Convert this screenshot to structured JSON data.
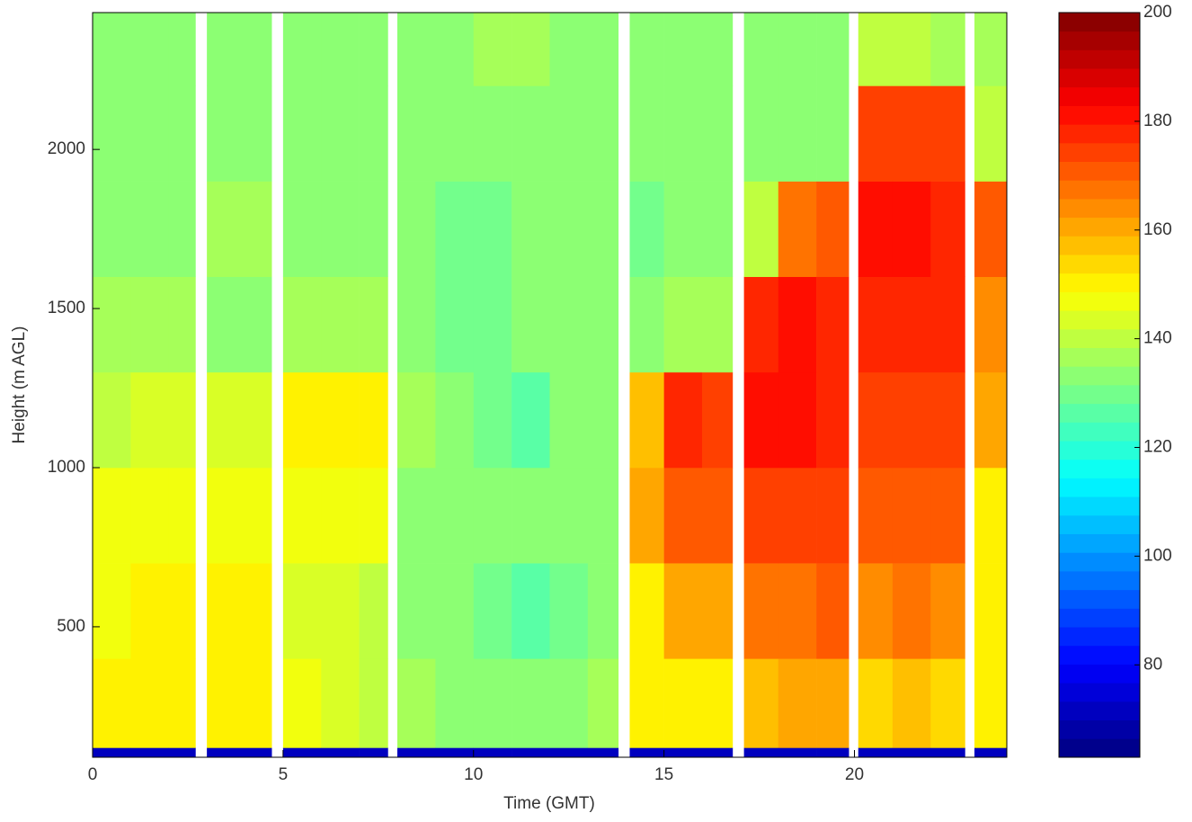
{
  "chart_data": {
    "type": "heatmap",
    "xlabel": "Time (GMT)",
    "ylabel": "Height (m AGL)",
    "xlim": [
      0,
      24
    ],
    "xticks": [
      0,
      5,
      10,
      15,
      20
    ],
    "ylim": [
      90,
      2430
    ],
    "yticks": [
      500,
      1000,
      1500,
      2000
    ],
    "x_edges": [
      0,
      1,
      2,
      2.7,
      3,
      4,
      4.7,
      5,
      6,
      7,
      7.75,
      8,
      9,
      10,
      11,
      12,
      13,
      13.8,
      14.1,
      15,
      16,
      16.8,
      17.1,
      18,
      19,
      19.85,
      20.1,
      21,
      22,
      22.9,
      23.15,
      24
    ],
    "y_edges": [
      90,
      120,
      400,
      700,
      1000,
      1300,
      1600,
      1900,
      2200,
      2430
    ],
    "z": [
      [
        72,
        150,
        148,
        146,
        140,
        136,
        134,
        134,
        134
      ],
      [
        72,
        152,
        150,
        146,
        142,
        136,
        134,
        134,
        134
      ],
      [
        72,
        150,
        150,
        148,
        142,
        136,
        134,
        134,
        134
      ],
      null,
      [
        72,
        152,
        150,
        148,
        142,
        134,
        136,
        134,
        134
      ],
      [
        72,
        150,
        150,
        148,
        144,
        134,
        138,
        134,
        134
      ],
      null,
      [
        72,
        146,
        144,
        146,
        150,
        136,
        134,
        134,
        134
      ],
      [
        72,
        142,
        142,
        148,
        152,
        136,
        134,
        134,
        134
      ],
      [
        72,
        140,
        140,
        146,
        150,
        136,
        134,
        134,
        134
      ],
      null,
      [
        72,
        136,
        134,
        134,
        136,
        132,
        132,
        132,
        134
      ],
      [
        72,
        134,
        132,
        134,
        134,
        130,
        130,
        132,
        134
      ],
      [
        72,
        132,
        130,
        132,
        130,
        130,
        130,
        132,
        136
      ],
      [
        72,
        132,
        128,
        132,
        126,
        132,
        132,
        134,
        138
      ],
      [
        72,
        134,
        130,
        132,
        132,
        132,
        132,
        132,
        134
      ],
      [
        72,
        136,
        132,
        132,
        134,
        132,
        132,
        132,
        134
      ],
      null,
      [
        72,
        150,
        152,
        160,
        158,
        132,
        130,
        132,
        134
      ],
      [
        72,
        152,
        160,
        172,
        178,
        136,
        132,
        132,
        134
      ],
      [
        72,
        150,
        160,
        170,
        176,
        136,
        132,
        132,
        134
      ],
      null,
      [
        72,
        158,
        166,
        174,
        180,
        178,
        140,
        134,
        134
      ],
      [
        72,
        160,
        168,
        175,
        180,
        180,
        168,
        134,
        134
      ],
      [
        72,
        160,
        170,
        176,
        178,
        178,
        172,
        134,
        134
      ],
      null,
      [
        72,
        155,
        164,
        172,
        176,
        178,
        180,
        176,
        140
      ],
      [
        72,
        156,
        166,
        172,
        176,
        178,
        180,
        176,
        140
      ],
      [
        72,
        155,
        165,
        172,
        175,
        178,
        178,
        174,
        138
      ],
      null,
      [
        72,
        150,
        150,
        150,
        160,
        165,
        172,
        140,
        138
      ]
    ],
    "colormap": "jet",
    "levels": 40,
    "colorbar": {
      "lim": [
        63,
        200
      ],
      "ticks": [
        80,
        100,
        120,
        140,
        160,
        180,
        200
      ]
    }
  }
}
